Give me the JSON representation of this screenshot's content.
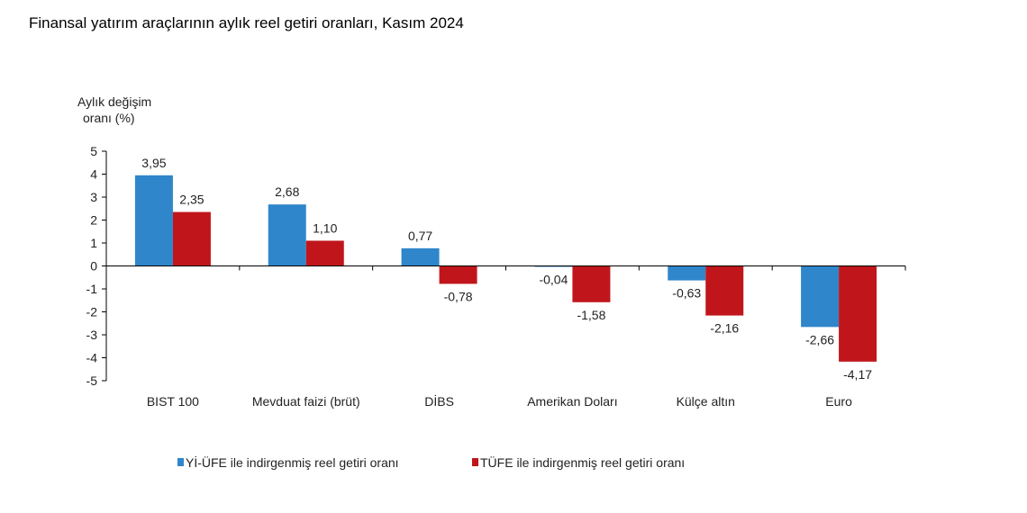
{
  "chart_data": {
    "type": "bar",
    "title": "Finansal yatırım araçlarının aylık reel getiri oranları, Kasım 2024",
    "ylabel": [
      "Aylık değişim",
      "oranı (%)"
    ],
    "ylim": [
      -5,
      5
    ],
    "yticks": [
      5,
      4,
      3,
      2,
      1,
      0,
      -1,
      -2,
      -3,
      -4,
      -5
    ],
    "categories": [
      "BIST 100",
      "Mevduat faizi (brüt)",
      "DİBS",
      "Amerikan Doları",
      "Külçe altın",
      "Euro"
    ],
    "series": [
      {
        "name": "Yİ-ÜFE ile indirgenmiş reel getiri oranı",
        "color": "#2F86CB",
        "values": [
          3.95,
          2.68,
          0.77,
          -0.04,
          -0.63,
          -2.66
        ],
        "labels": [
          "3,95",
          "2,68",
          "0,77",
          "-0,04",
          "-0,63",
          "-2,66"
        ]
      },
      {
        "name": "TÜFE ile indirgenmiş reel getiri oranı",
        "color": "#C0161B",
        "values": [
          2.35,
          1.1,
          -0.78,
          -1.58,
          -2.16,
          -4.17
        ],
        "labels": [
          "2,35",
          "1,10",
          "-0,78",
          "-1,58",
          "-2,16",
          "-4,17"
        ]
      }
    ],
    "grid": false,
    "legend": "bottom"
  }
}
